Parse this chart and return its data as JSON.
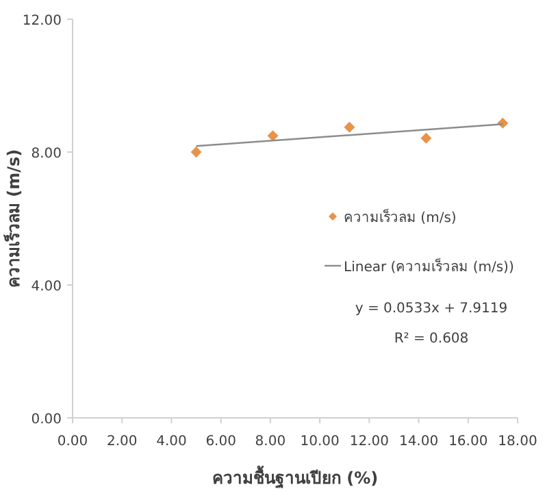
{
  "chart_data": {
    "type": "scatter",
    "xlabel": "ความชื้นฐานเปียก (%)",
    "ylabel": "ความเร็วลม (m/s)",
    "x": [
      5.0,
      8.1,
      11.2,
      14.3,
      17.4
    ],
    "series": [
      {
        "name": "ความเร็วลม (m/s)",
        "color": "#e8924a",
        "values": [
          8.0,
          8.49,
          8.75,
          8.42,
          8.87
        ],
        "errors": [
          0.15,
          0.12,
          0.12,
          0.1,
          0.06
        ],
        "marker": "diamond"
      },
      {
        "name": "Linear (ความเร็วลม (m/s))",
        "type": "line",
        "color": "#8c8c8c",
        "x": [
          5.0,
          17.4
        ],
        "values": [
          8.18,
          8.84
        ],
        "marker": "none"
      }
    ],
    "xlim": [
      0,
      18
    ],
    "xticks": [
      {
        "value": 0,
        "label": "0.00"
      },
      {
        "value": 2,
        "label": "2.00"
      },
      {
        "value": 4,
        "label": "4.00"
      },
      {
        "value": 6,
        "label": "6.00"
      },
      {
        "value": 8,
        "label": "8.00"
      },
      {
        "value": 10,
        "label": "10.00"
      },
      {
        "value": 12,
        "label": "12.00"
      },
      {
        "value": 14,
        "label": "14.00"
      },
      {
        "value": 16,
        "label": "16.00"
      },
      {
        "value": 18,
        "label": "18.00"
      }
    ],
    "ylim": [
      0,
      12
    ],
    "yticks": [
      {
        "value": 0,
        "label": "0.00"
      },
      {
        "value": 4,
        "label": "4.00"
      },
      {
        "value": 8,
        "label": "8.00"
      },
      {
        "value": 12,
        "label": "12.00"
      }
    ],
    "grid": false,
    "legend": "right",
    "annotations": [
      "y = 0.0533x + 7.9119",
      "R² = 0.608"
    ]
  }
}
